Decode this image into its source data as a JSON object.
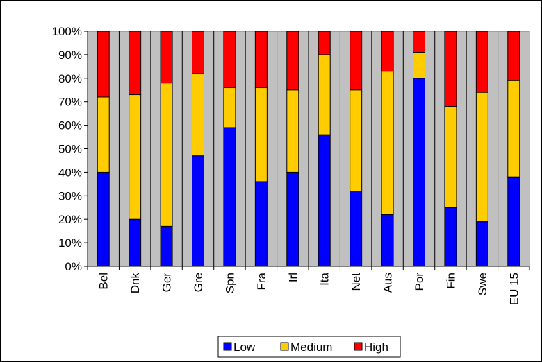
{
  "chart_data": {
    "type": "bar",
    "stacked": true,
    "percent_stacked": true,
    "categories": [
      "Bel",
      "Dnk",
      "Ger",
      "Gre",
      "Spn",
      "Fra",
      "Irl",
      "Ita",
      "Net",
      "Aus",
      "Por",
      "Fin",
      "Swe",
      "EU 15"
    ],
    "series": [
      {
        "name": "Low",
        "color": "#0000ff",
        "values": [
          40,
          20,
          17,
          47,
          59,
          36,
          40,
          56,
          32,
          22,
          80,
          25,
          19,
          38
        ]
      },
      {
        "name": "Medium",
        "color": "#ffcc00",
        "values": [
          32,
          53,
          61,
          35,
          17,
          40,
          35,
          34,
          43,
          61,
          11,
          43,
          55,
          41
        ]
      },
      {
        "name": "High",
        "color": "#ff0000",
        "values": [
          28,
          27,
          22,
          18,
          24,
          24,
          25,
          10,
          25,
          17,
          9,
          32,
          26,
          21
        ]
      }
    ],
    "y_ticks": [
      "0%",
      "10%",
      "20%",
      "30%",
      "40%",
      "50%",
      "60%",
      "70%",
      "80%",
      "90%",
      "100%"
    ],
    "ylim": [
      0,
      100
    ],
    "plot_background": "#c0c0c0",
    "grid": "vertical",
    "legend_position": "bottom"
  }
}
